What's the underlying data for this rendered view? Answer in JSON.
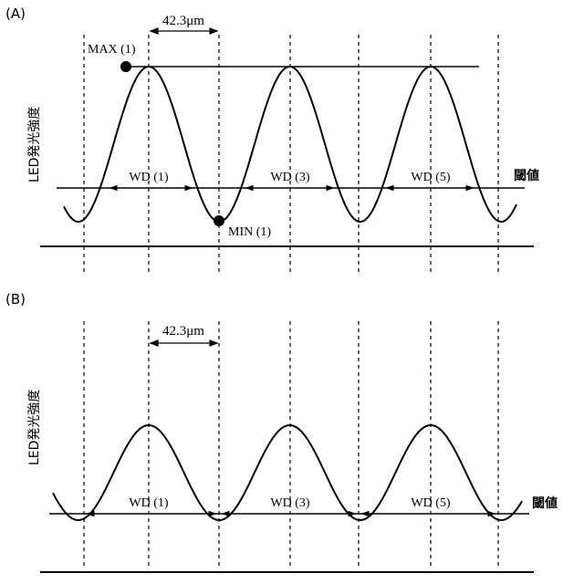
{
  "panels": [
    {
      "label": "(A)",
      "ylabel": "LED発光強度",
      "dimension": "42.3μm",
      "max_label": "MAX (1)",
      "min_label": "MIN (1)",
      "threshold_label": "閾値",
      "wd_labels": [
        "WD (1)",
        "WD (3)",
        "WD (5)"
      ]
    },
    {
      "label": "(B)",
      "ylabel": "LED発光強度",
      "dimension": "42.3μm",
      "threshold_label": "閾値",
      "wd_labels": [
        "WD (1)",
        "WD (3)",
        "WD (5)"
      ]
    }
  ]
}
